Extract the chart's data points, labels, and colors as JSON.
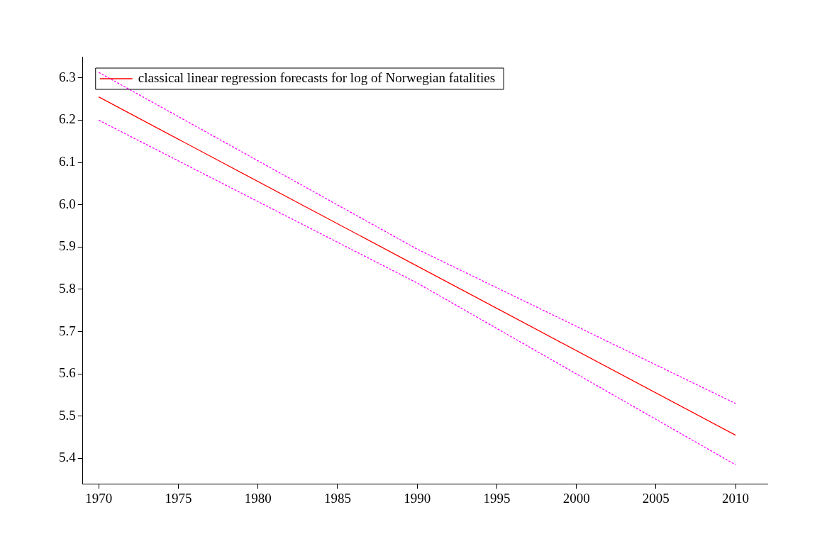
{
  "chart_data": {
    "type": "line",
    "x": [
      1970,
      1990,
      2010
    ],
    "series": [
      {
        "name": "classical linear regression forecasts for log of Norwegian fatalities",
        "color": "#ff0000",
        "values": [
          6.255,
          5.855,
          5.455
        ],
        "line_style": "solid"
      },
      {
        "color": "#ff00ff",
        "values": [
          6.313,
          5.895,
          5.53
        ],
        "line_style": "dotted"
      },
      {
        "color": "#ff00ff",
        "values": [
          6.2,
          5.815,
          5.385
        ],
        "line_style": "dotted"
      }
    ],
    "xlim": [
      1969,
      2012
    ],
    "xticks": [
      1970,
      1975,
      1980,
      1985,
      1990,
      1995,
      2000,
      2005,
      2010
    ],
    "ylim": [
      5.34,
      6.35
    ],
    "yticks": [
      5.4,
      5.5,
      5.6,
      5.7,
      5.8,
      5.9,
      {
        "value": 6,
        "label": "6.0"
      },
      6.1,
      6.2,
      6.3
    ],
    "grid": false,
    "legend": "top left",
    "marker": "none"
  }
}
